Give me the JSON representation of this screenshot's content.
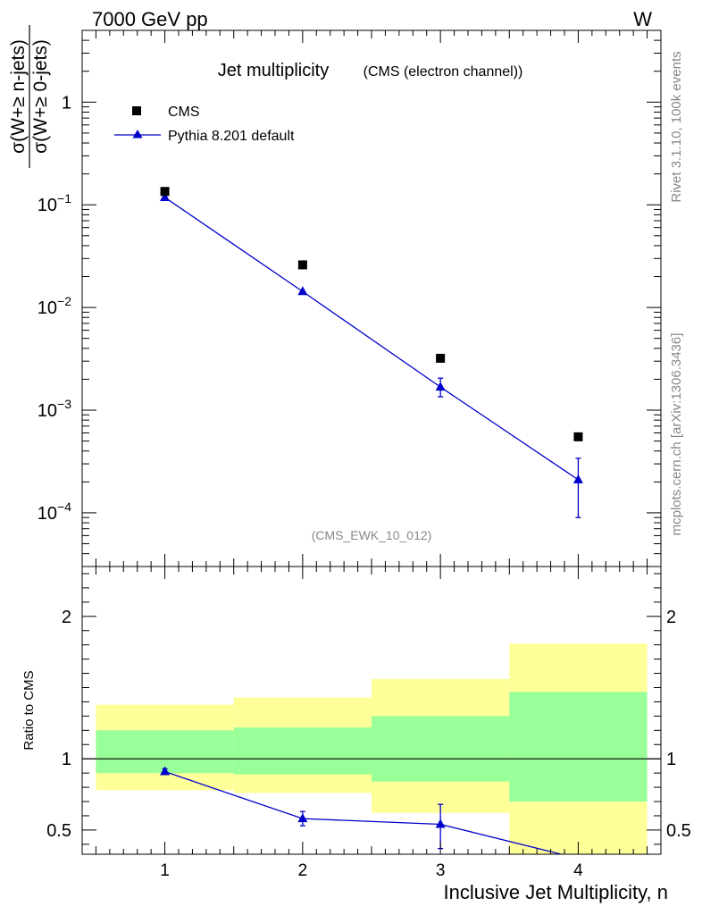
{
  "header": {
    "left": "7000 GeV pp",
    "right": "W"
  },
  "side_labels": {
    "rivet": "Rivet 3.1.10,  100k events",
    "mcplots": "mcplots.cern.ch [arXiv:1306.3436]"
  },
  "chart_data": [
    {
      "type": "scatter",
      "title": "Jet multiplicity",
      "subtitle": "(CMS (electron channel))",
      "watermark": "(CMS_EWK_10_012)",
      "ylabel_numerator": "σ(W+≥ n-jets)",
      "ylabel_denominator": "σ(W+≥ 0-jets)",
      "yscale": "log",
      "ylim": [
        3e-05,
        5
      ],
      "xlim": [
        0.4,
        4.6
      ],
      "ytick_labels": [
        {
          "value": 1,
          "mant": "1",
          "exp": ""
        },
        {
          "value": 0.1,
          "mant": "10",
          "exp": "−1"
        },
        {
          "value": 0.01,
          "mant": "10",
          "exp": "−2"
        },
        {
          "value": 0.001,
          "mant": "10",
          "exp": "−3"
        },
        {
          "value": 0.0001,
          "mant": "10",
          "exp": "−4"
        }
      ],
      "legend_position": "top-left",
      "series": [
        {
          "name": "CMS",
          "marker": "square",
          "color": "#000000",
          "x": [
            1,
            2,
            3,
            4
          ],
          "y": [
            0.135,
            0.026,
            0.0032,
            0.00055
          ]
        },
        {
          "name": "Pythia 8.201 default",
          "marker": "triangle",
          "color": "#0000cc",
          "x": [
            1,
            2,
            3,
            4
          ],
          "y": [
            0.118,
            0.0143,
            0.00168,
            0.00021
          ],
          "yerr_low": [
            0.118,
            0.0143,
            0.00135,
            9e-05
          ],
          "yerr_high": [
            0.118,
            0.0143,
            0.00205,
            0.00034
          ]
        }
      ]
    },
    {
      "type": "scatter",
      "ylabel": "Ratio to CMS",
      "xlabel": "Inclusive Jet Multiplicity, n",
      "ylim": [
        0.33,
        2.35
      ],
      "xlim": [
        0.4,
        4.6
      ],
      "xtick_labels": [
        "1",
        "2",
        "3",
        "4"
      ],
      "ytick_labels": [
        "0.5",
        "1",
        "2"
      ],
      "ytick_values": [
        0.5,
        1,
        2
      ],
      "reference_line": 1,
      "bands": [
        {
          "x_low": 0.5,
          "x_high": 1.5,
          "green_low": 0.9,
          "green_high": 1.2,
          "yellow_low": 0.78,
          "yellow_high": 1.38
        },
        {
          "x_low": 1.5,
          "x_high": 2.5,
          "green_low": 0.89,
          "green_high": 1.22,
          "yellow_low": 0.76,
          "yellow_high": 1.43
        },
        {
          "x_low": 2.5,
          "x_high": 3.5,
          "green_low": 0.84,
          "green_high": 1.3,
          "yellow_low": 0.62,
          "yellow_high": 1.56
        },
        {
          "x_low": 3.5,
          "x_high": 4.5,
          "green_low": 0.7,
          "green_high": 1.47,
          "yellow_low": 0.33,
          "yellow_high": 1.81
        }
      ],
      "band_colors": {
        "green": "#99ff99",
        "yellow": "#ffff99"
      },
      "series": [
        {
          "name": "Pythia 8.201 default",
          "color": "#0000cc",
          "x": [
            1,
            2,
            3,
            4
          ],
          "y": [
            0.91,
            0.58,
            0.54,
            0.3
          ],
          "yerr_low": [
            0.89,
            0.53,
            0.37,
            0.3
          ],
          "yerr_high": [
            0.93,
            0.63,
            0.68,
            0.3
          ]
        }
      ]
    }
  ]
}
